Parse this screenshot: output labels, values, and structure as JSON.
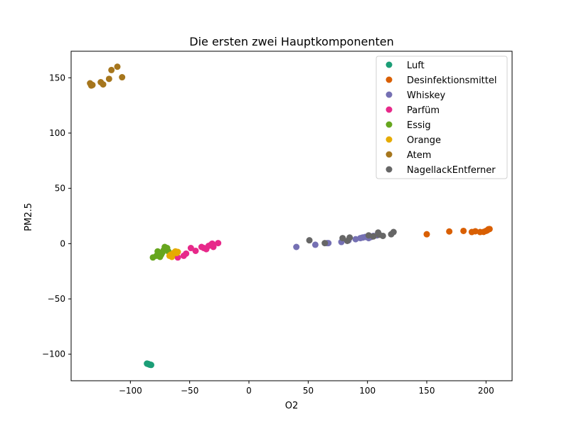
{
  "chart_data": {
    "type": "scatter",
    "title": "Die ersten zwei Hauptkomponenten",
    "xlabel": "O2",
    "ylabel": "PM2.5",
    "xlim": [
      -150,
      222
    ],
    "ylim": [
      -124,
      174
    ],
    "xticks": [
      -100,
      -50,
      0,
      50,
      100,
      150,
      200
    ],
    "yticks": [
      -100,
      -50,
      0,
      50,
      100,
      150
    ],
    "grid": false,
    "legend_position": "top-right",
    "series": [
      {
        "name": "Luft",
        "color": "#1b9e77",
        "points": [
          [
            -86,
            -108.5
          ],
          [
            -85,
            -108.8
          ],
          [
            -84.5,
            -109
          ],
          [
            -84,
            -109.3
          ],
          [
            -83.5,
            -109.5
          ],
          [
            -83,
            -109.6
          ],
          [
            -82.5,
            -109.7
          ],
          [
            -85.5,
            -108.7
          ]
        ]
      },
      {
        "name": "Desinfektionsmittel",
        "color": "#d95f02",
        "points": [
          [
            150,
            8.5
          ],
          [
            169,
            11
          ],
          [
            181,
            11.5
          ],
          [
            188,
            10.5
          ],
          [
            191,
            11.2
          ],
          [
            195,
            10.5
          ],
          [
            198,
            10.6
          ],
          [
            200,
            11.5
          ],
          [
            201,
            12
          ],
          [
            202,
            13
          ],
          [
            203,
            13.2
          ]
        ]
      },
      {
        "name": "Whiskey",
        "color": "#7570b3",
        "points": [
          [
            40,
            -3
          ],
          [
            56,
            -1
          ],
          [
            66,
            0.5
          ],
          [
            67,
            0.5
          ],
          [
            78,
            1.5
          ],
          [
            84,
            3
          ],
          [
            90,
            4
          ],
          [
            94,
            5
          ],
          [
            96,
            5.5
          ],
          [
            98,
            6
          ],
          [
            101,
            5
          ],
          [
            103,
            6
          ],
          [
            105,
            7
          ],
          [
            108,
            7.5
          ]
        ]
      },
      {
        "name": "Parfüm",
        "color": "#e7298a",
        "points": [
          [
            -60,
            -12.5
          ],
          [
            -55,
            -11
          ],
          [
            -53,
            -9
          ],
          [
            -49,
            -4
          ],
          [
            -45,
            -6.5
          ],
          [
            -40,
            -3
          ],
          [
            -38,
            -4
          ],
          [
            -36,
            -5
          ],
          [
            -34,
            -2
          ],
          [
            -32,
            -1
          ],
          [
            -30,
            -3
          ],
          [
            -31,
            0
          ],
          [
            -26,
            0.5
          ]
        ]
      },
      {
        "name": "Essig",
        "color": "#66a61e",
        "points": [
          [
            -81,
            -12.5
          ],
          [
            -78,
            -11
          ],
          [
            -77,
            -7
          ],
          [
            -76,
            -9
          ],
          [
            -75,
            -12
          ],
          [
            -74,
            -10
          ],
          [
            -73,
            -8
          ],
          [
            -72,
            -6
          ],
          [
            -71,
            -3
          ],
          [
            -70,
            -5
          ],
          [
            -69,
            -4
          ],
          [
            -68,
            -7
          ]
        ]
      },
      {
        "name": "Orange",
        "color": "#e6ab02",
        "points": [
          [
            -67,
            -11
          ],
          [
            -66,
            -10
          ],
          [
            -65,
            -12
          ],
          [
            -64,
            -9
          ],
          [
            -63,
            -8
          ],
          [
            -62,
            -7
          ],
          [
            -61,
            -8.5
          ],
          [
            -60,
            -7.5
          ]
        ]
      },
      {
        "name": "Atem",
        "color": "#a6761d",
        "points": [
          [
            -134,
            145
          ],
          [
            -133,
            143
          ],
          [
            -132,
            143.5
          ],
          [
            -125,
            146
          ],
          [
            -123,
            144
          ],
          [
            -118,
            149
          ],
          [
            -116,
            157
          ],
          [
            -111,
            160
          ],
          [
            -107,
            150.5
          ]
        ]
      },
      {
        "name": "NagellackEntferner",
        "color": "#666666",
        "points": [
          [
            51,
            3
          ],
          [
            64,
            0.5
          ],
          [
            79,
            5
          ],
          [
            83,
            2.5
          ],
          [
            85,
            5.5
          ],
          [
            101,
            7.5
          ],
          [
            105,
            6.5
          ],
          [
            109,
            10
          ],
          [
            113,
            7
          ],
          [
            120,
            8.5
          ],
          [
            122,
            10.5
          ],
          [
            110,
            8
          ]
        ]
      }
    ]
  }
}
